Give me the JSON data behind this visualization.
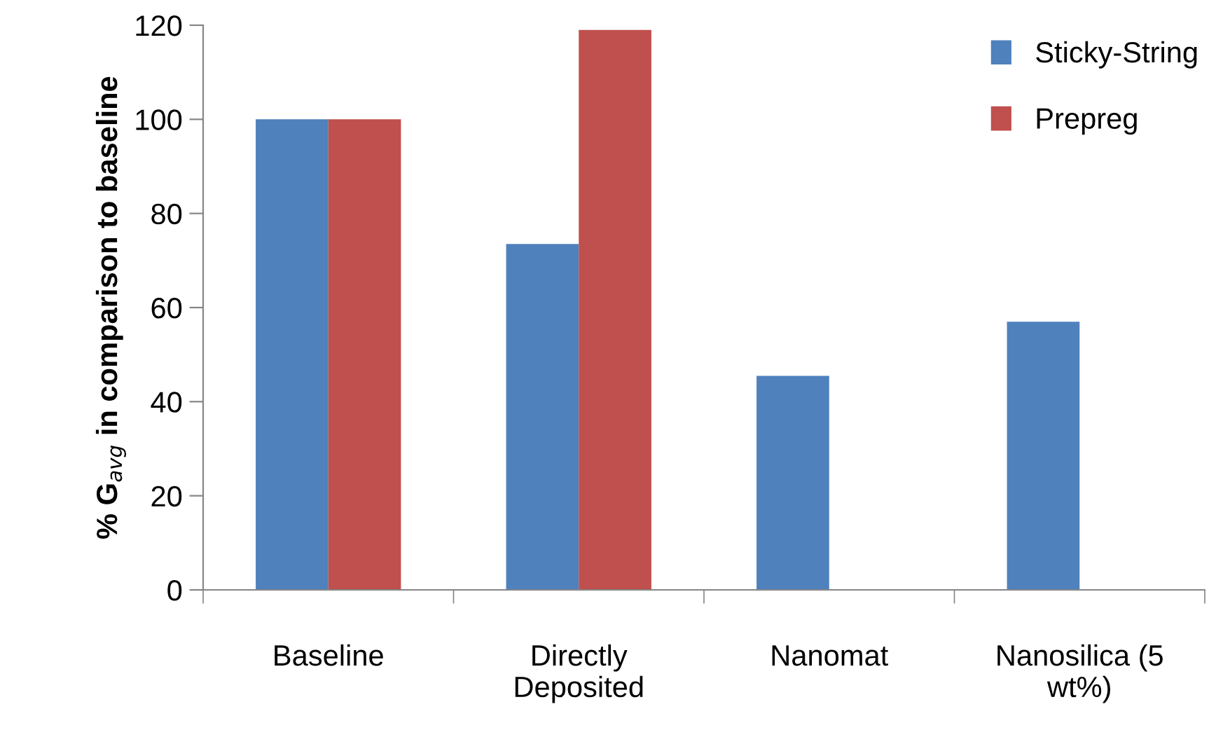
{
  "chart_data": {
    "type": "bar",
    "ylabel": "% G$_{avg}$ in comparison to baseline",
    "categories": [
      "Baseline",
      "Directly\nDeposited",
      "Nanomat",
      "Nanosilica (5\nwt%)"
    ],
    "series": [
      {
        "name": "Sticky-String",
        "color": "#4f81bd",
        "values": [
          100,
          73.5,
          45.5,
          57
        ]
      },
      {
        "name": "Prepreg",
        "color": "#c0504d",
        "values": [
          100,
          119,
          null,
          null
        ]
      }
    ],
    "ylim": [
      0,
      120
    ],
    "yticks": [
      0,
      20,
      40,
      60,
      80,
      100,
      120
    ],
    "legend": "top right",
    "grid": false
  }
}
